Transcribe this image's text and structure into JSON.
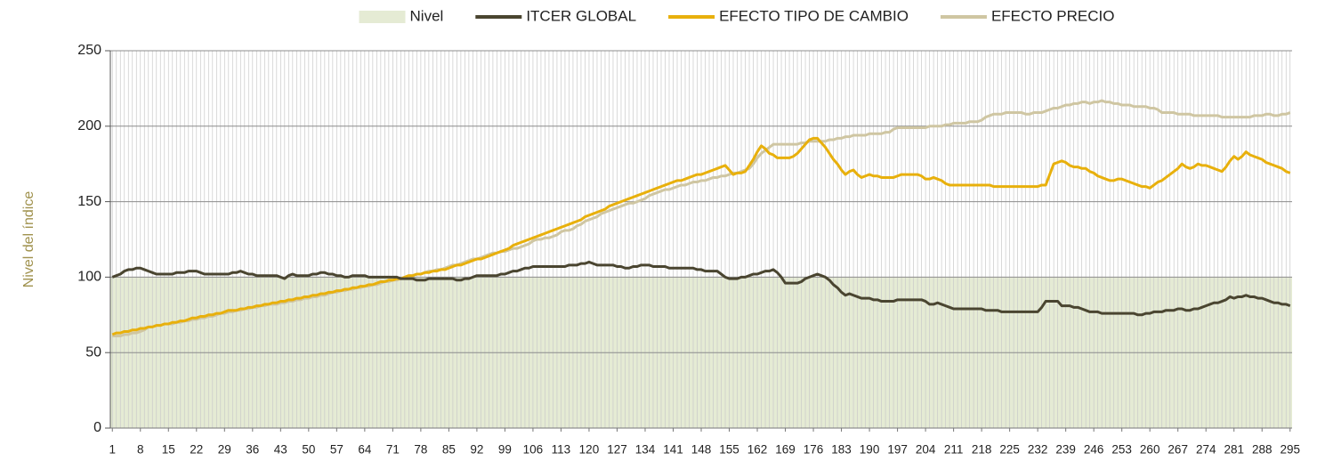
{
  "chart_data": {
    "type": "line",
    "y_label": "Nivel del índice",
    "reference_area": {
      "name": "Nivel",
      "value": 100,
      "color": "#e5ebd4"
    },
    "x": [
      1,
      2,
      3,
      4,
      5,
      6,
      7,
      8,
      9,
      10,
      11,
      12,
      13,
      14,
      15,
      16,
      17,
      18,
      19,
      20,
      21,
      22,
      23,
      24,
      25,
      26,
      27,
      28,
      29,
      30,
      31,
      32,
      33,
      34,
      35,
      36,
      37,
      38,
      39,
      40,
      41,
      42,
      43,
      44,
      45,
      46,
      47,
      48,
      49,
      50,
      51,
      52,
      53,
      54,
      55,
      56,
      57,
      58,
      59,
      60,
      61,
      62,
      63,
      64,
      65,
      66,
      67,
      68,
      69,
      70,
      71,
      72,
      73,
      74,
      75,
      76,
      77,
      78,
      79,
      80,
      81,
      82,
      83,
      84,
      85,
      86,
      87,
      88,
      89,
      90,
      91,
      92,
      93,
      94,
      95,
      96,
      97,
      98,
      99,
      100,
      101,
      102,
      103,
      104,
      105,
      106,
      107,
      108,
      109,
      110,
      111,
      112,
      113,
      114,
      115,
      116,
      117,
      118,
      119,
      120,
      121,
      122,
      123,
      124,
      125,
      126,
      127,
      128,
      129,
      130,
      131,
      132,
      133,
      134,
      135,
      136,
      137,
      138,
      139,
      140,
      141,
      142,
      143,
      144,
      145,
      146,
      147,
      148,
      149,
      150,
      151,
      152,
      153,
      154,
      155,
      156,
      157,
      158,
      159,
      160,
      161,
      162,
      163,
      164,
      165,
      166,
      167,
      168,
      169,
      170,
      171,
      172,
      173,
      174,
      175,
      176,
      177,
      178,
      179,
      180,
      181,
      182,
      183,
      184,
      185,
      186,
      187,
      188,
      189,
      190,
      191,
      192,
      193,
      194,
      195,
      196,
      197,
      198,
      199,
      200,
      201,
      202,
      203,
      204,
      205,
      206,
      207,
      208,
      209,
      210,
      211,
      212,
      213,
      214,
      215,
      216,
      217,
      218,
      219,
      220,
      221,
      222,
      223,
      224,
      225,
      226,
      227,
      228,
      229,
      230,
      231,
      232,
      233,
      234,
      235,
      236,
      237,
      238,
      239,
      240,
      241,
      242,
      243,
      244,
      245,
      246,
      247,
      248,
      249,
      250,
      251,
      252,
      253,
      254,
      255,
      256,
      257,
      258,
      259,
      260,
      261,
      262,
      263,
      264,
      265,
      266,
      267,
      268,
      269,
      270,
      271,
      272,
      273,
      274,
      275,
      276,
      277,
      278,
      279,
      280,
      281,
      282,
      283,
      284,
      285,
      286,
      287,
      288,
      289,
      290,
      291,
      292,
      293,
      294,
      295
    ],
    "series": [
      {
        "name": "ITCER GLOBAL",
        "color": "#4a4530",
        "values": [
          100,
          101,
          102,
          104,
          105,
          105,
          106,
          106,
          105,
          104,
          103,
          102,
          102,
          102,
          102,
          102,
          103,
          103,
          103,
          104,
          104,
          104,
          103,
          102,
          102,
          102,
          102,
          102,
          102,
          102,
          103,
          103,
          104,
          103,
          102,
          102,
          101,
          101,
          101,
          101,
          101,
          101,
          100,
          99,
          101,
          102,
          101,
          101,
          101,
          101,
          102,
          102,
          103,
          103,
          102,
          102,
          101,
          101,
          100,
          100,
          101,
          101,
          101,
          101,
          100,
          100,
          100,
          100,
          100,
          100,
          100,
          100,
          99,
          99,
          99,
          99,
          98,
          98,
          98,
          99,
          99,
          99,
          99,
          99,
          99,
          99,
          98,
          98,
          99,
          99,
          100,
          101,
          101,
          101,
          101,
          101,
          101,
          102,
          102,
          103,
          104,
          104,
          105,
          106,
          106,
          107,
          107,
          107,
          107,
          107,
          107,
          107,
          107,
          107,
          108,
          108,
          108,
          109,
          109,
          110,
          109,
          108,
          108,
          108,
          108,
          108,
          107,
          107,
          106,
          106,
          107,
          107,
          108,
          108,
          108,
          107,
          107,
          107,
          107,
          106,
          106,
          106,
          106,
          106,
          106,
          106,
          105,
          105,
          104,
          104,
          104,
          104,
          102,
          100,
          99,
          99,
          99,
          100,
          100,
          101,
          102,
          102,
          103,
          104,
          104,
          105,
          103,
          100,
          96,
          96,
          96,
          96,
          97,
          99,
          100,
          101,
          102,
          101,
          100,
          98,
          95,
          93,
          90,
          88,
          89,
          88,
          87,
          86,
          86,
          86,
          85,
          85,
          84,
          84,
          84,
          84,
          85,
          85,
          85,
          85,
          85,
          85,
          85,
          84,
          82,
          82,
          83,
          82,
          81,
          80,
          79,
          79,
          79,
          79,
          79,
          79,
          79,
          79,
          78,
          78,
          78,
          78,
          77,
          77,
          77,
          77,
          77,
          77,
          77,
          77,
          77,
          77,
          80,
          84,
          84,
          84,
          84,
          81,
          81,
          81,
          80,
          80,
          79,
          78,
          77,
          77,
          77,
          76,
          76,
          76,
          76,
          76,
          76,
          76,
          76,
          76,
          75,
          75,
          76,
          76,
          77,
          77,
          77,
          78,
          78,
          78,
          79,
          79,
          78,
          78,
          79,
          79,
          80,
          81,
          82,
          83,
          83,
          84,
          85,
          87,
          86,
          87,
          87,
          88,
          87,
          87,
          86,
          86,
          85,
          84,
          83,
          83,
          82,
          82,
          81
        ]
      },
      {
        "name": "EFECTO TIPO DE CAMBIO",
        "color": "#e8b00c",
        "values": [
          62,
          63,
          63,
          64,
          64,
          65,
          65,
          66,
          66,
          67,
          67,
          68,
          68,
          69,
          69,
          70,
          70,
          71,
          71,
          72,
          73,
          73,
          74,
          74,
          75,
          75,
          76,
          76,
          77,
          78,
          78,
          78,
          79,
          79,
          80,
          80,
          81,
          81,
          82,
          82,
          83,
          83,
          84,
          84,
          85,
          85,
          86,
          86,
          87,
          87,
          88,
          88,
          89,
          89,
          90,
          90,
          91,
          91,
          92,
          92,
          93,
          93,
          94,
          94,
          95,
          95,
          96,
          97,
          97,
          98,
          98,
          99,
          99,
          100,
          101,
          101,
          102,
          102,
          103,
          103,
          104,
          104,
          105,
          105,
          106,
          107,
          108,
          108,
          109,
          110,
          111,
          112,
          112,
          113,
          114,
          115,
          116,
          117,
          118,
          119,
          121,
          122,
          123,
          124,
          125,
          126,
          127,
          128,
          129,
          130,
          131,
          132,
          133,
          134,
          135,
          136,
          137,
          138,
          140,
          141,
          142,
          143,
          144,
          145,
          147,
          148,
          149,
          150,
          151,
          152,
          153,
          154,
          155,
          156,
          157,
          158,
          159,
          160,
          161,
          162,
          163,
          164,
          164,
          165,
          166,
          167,
          168,
          168,
          169,
          170,
          171,
          172,
          173,
          174,
          171,
          168,
          169,
          169,
          170,
          174,
          178,
          183,
          187,
          185,
          182,
          181,
          179,
          179,
          179,
          179,
          180,
          182,
          185,
          188,
          191,
          192,
          192,
          189,
          186,
          182,
          178,
          175,
          171,
          168,
          170,
          171,
          168,
          166,
          167,
          168,
          167,
          167,
          166,
          166,
          166,
          166,
          167,
          168,
          168,
          168,
          168,
          168,
          167,
          165,
          165,
          166,
          165,
          164,
          162,
          161,
          161,
          161,
          161,
          161,
          161,
          161,
          161,
          161,
          161,
          161,
          160,
          160,
          160,
          160,
          160,
          160,
          160,
          160,
          160,
          160,
          160,
          160,
          161,
          161,
          168,
          175,
          176,
          177,
          176,
          174,
          173,
          173,
          172,
          172,
          170,
          169,
          167,
          166,
          165,
          164,
          164,
          165,
          165,
          164,
          163,
          162,
          161,
          160,
          160,
          159,
          161,
          163,
          164,
          166,
          168,
          170,
          172,
          175,
          173,
          172,
          173,
          175,
          174,
          174,
          173,
          172,
          171,
          170,
          173,
          177,
          180,
          178,
          180,
          183,
          181,
          180,
          179,
          178,
          176,
          175,
          174,
          173,
          172,
          170,
          169
        ]
      },
      {
        "name": "EFECTO PRECIO",
        "color": "#cfc6a2",
        "values": [
          61,
          61,
          61,
          62,
          62,
          63,
          63,
          64,
          65,
          67,
          67,
          68,
          68,
          69,
          69,
          69,
          70,
          70,
          71,
          71,
          72,
          72,
          73,
          73,
          74,
          74,
          75,
          76,
          76,
          77,
          77,
          78,
          78,
          79,
          79,
          80,
          80,
          81,
          81,
          82,
          82,
          82,
          83,
          83,
          84,
          84,
          85,
          85,
          86,
          86,
          87,
          87,
          88,
          88,
          89,
          90,
          90,
          91,
          91,
          92,
          92,
          93,
          93,
          94,
          94,
          95,
          95,
          96,
          97,
          97,
          98,
          98,
          99,
          100,
          101,
          101,
          102,
          102,
          103,
          104,
          104,
          105,
          105,
          106,
          107,
          108,
          108,
          109,
          110,
          111,
          112,
          112,
          113,
          114,
          115,
          116,
          116,
          117,
          117,
          118,
          119,
          119,
          120,
          121,
          122,
          124,
          125,
          125,
          126,
          126,
          127,
          128,
          130,
          131,
          131,
          132,
          134,
          135,
          137,
          138,
          139,
          140,
          142,
          143,
          144,
          145,
          146,
          147,
          148,
          149,
          149,
          150,
          151,
          152,
          154,
          155,
          156,
          157,
          158,
          158,
          159,
          160,
          161,
          161,
          162,
          163,
          163,
          164,
          164,
          165,
          166,
          166,
          167,
          167,
          168,
          169,
          169,
          170,
          171,
          172,
          175,
          179,
          182,
          184,
          186,
          188,
          188,
          188,
          188,
          188,
          188,
          188,
          189,
          189,
          190,
          190,
          190,
          190,
          190,
          191,
          191,
          192,
          192,
          193,
          193,
          194,
          194,
          194,
          194,
          195,
          195,
          195,
          195,
          196,
          196,
          198,
          199,
          199,
          199,
          199,
          199,
          199,
          199,
          199,
          200,
          200,
          200,
          200,
          201,
          201,
          202,
          202,
          202,
          202,
          203,
          203,
          203,
          204,
          206,
          207,
          208,
          208,
          208,
          209,
          209,
          209,
          209,
          209,
          208,
          208,
          209,
          209,
          209,
          210,
          211,
          212,
          212,
          213,
          214,
          214,
          215,
          215,
          216,
          216,
          215,
          216,
          216,
          217,
          216,
          216,
          215,
          215,
          214,
          214,
          214,
          213,
          213,
          213,
          213,
          212,
          212,
          211,
          209,
          209,
          209,
          209,
          208,
          208,
          208,
          208,
          207,
          207,
          207,
          207,
          207,
          207,
          207,
          206,
          206,
          206,
          206,
          206,
          206,
          206,
          206,
          207,
          207,
          207,
          208,
          208,
          207,
          207,
          208,
          208,
          209
        ]
      }
    ],
    "xlim": [
      0.5,
      295.5
    ],
    "xticks": [
      1,
      8,
      15,
      22,
      29,
      36,
      43,
      50,
      57,
      64,
      71,
      78,
      85,
      92,
      99,
      106,
      113,
      120,
      127,
      134,
      141,
      148,
      155,
      162,
      169,
      176,
      183,
      190,
      197,
      204,
      211,
      218,
      225,
      232,
      239,
      246,
      253,
      260,
      267,
      274,
      281,
      288,
      295
    ],
    "ylim": [
      0,
      250
    ],
    "yticks": [
      0,
      50,
      100,
      150,
      200,
      250
    ],
    "grid": true,
    "x_grid": true,
    "legend": "top"
  }
}
